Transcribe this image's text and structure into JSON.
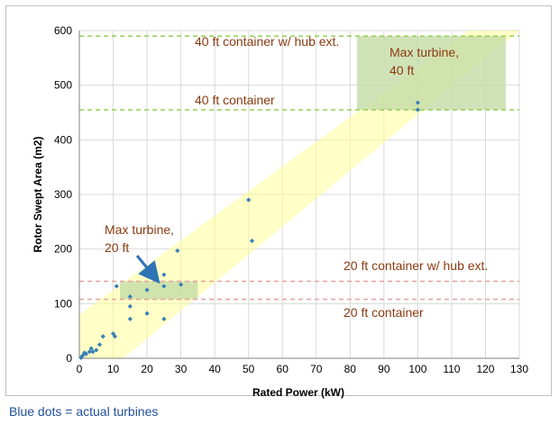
{
  "chart_data": {
    "type": "scatter",
    "xlabel": "Rated Power (kW)",
    "ylabel": "Rotor Swept Area (m2)",
    "xlim": [
      0,
      130
    ],
    "ylim": [
      0,
      600
    ],
    "x_ticks": [
      "0",
      "10",
      "20",
      "30",
      "40",
      "50",
      "60",
      "70",
      "80",
      "90",
      "100",
      "110",
      "120",
      "130"
    ],
    "y_ticks": [
      "0",
      "100",
      "200",
      "300",
      "400",
      "500",
      "600"
    ],
    "grid": true,
    "series": [
      {
        "color": "#3a7fb5",
        "points": [
          [
            0.5,
            1
          ],
          [
            1,
            5
          ],
          [
            1.5,
            10
          ],
          [
            2,
            8
          ],
          [
            3,
            12
          ],
          [
            3.5,
            18
          ],
          [
            4,
            12
          ],
          [
            5,
            15
          ],
          [
            6,
            25
          ],
          [
            7,
            40
          ],
          [
            10,
            45
          ],
          [
            10.5,
            40
          ],
          [
            11,
            132
          ],
          [
            15,
            113
          ],
          [
            15,
            95
          ],
          [
            15,
            72
          ],
          [
            20,
            125
          ],
          [
            20,
            82
          ],
          [
            25,
            153
          ],
          [
            25,
            132
          ],
          [
            25,
            72
          ],
          [
            29,
            197
          ],
          [
            30,
            135
          ],
          [
            50,
            290
          ],
          [
            51,
            215
          ],
          [
            100,
            468
          ],
          [
            100,
            455
          ]
        ]
      }
    ],
    "envelope": {
      "color": "#ffff99",
      "lower": [
        [
          0,
          0
        ],
        [
          13,
          0
        ],
        [
          137,
          600
        ]
      ],
      "upper": [
        [
          0,
          45
        ],
        [
          0,
          80
        ],
        [
          115,
          600
        ]
      ]
    },
    "reference_lines": [
      {
        "label": "40 ft container w/ hub ext.",
        "y": 590,
        "color": "#92d050"
      },
      {
        "label": "40 ft container",
        "y": 455,
        "color": "#92d050"
      },
      {
        "label": "20 ft container w/ hub ext.",
        "y": 141,
        "color": "#e6a0a0"
      },
      {
        "label": "20 ft container",
        "y": 108,
        "color": "#e6a0a0"
      }
    ],
    "highlight_boxes": [
      {
        "label": "Max turbine, 40 ft",
        "x": [
          82,
          126
        ],
        "y": [
          455,
          590
        ],
        "color": "#c4dca6"
      },
      {
        "label": "Max turbine, 20 ft",
        "x": [
          12,
          35
        ],
        "y": [
          108,
          141
        ],
        "color": "#c4dca6"
      }
    ],
    "annotations": {
      "max40": [
        "Max turbine,",
        "40 ft"
      ],
      "max20": [
        "Max turbine,",
        "20 ft"
      ]
    }
  },
  "caption": "Blue dots = actual turbines"
}
